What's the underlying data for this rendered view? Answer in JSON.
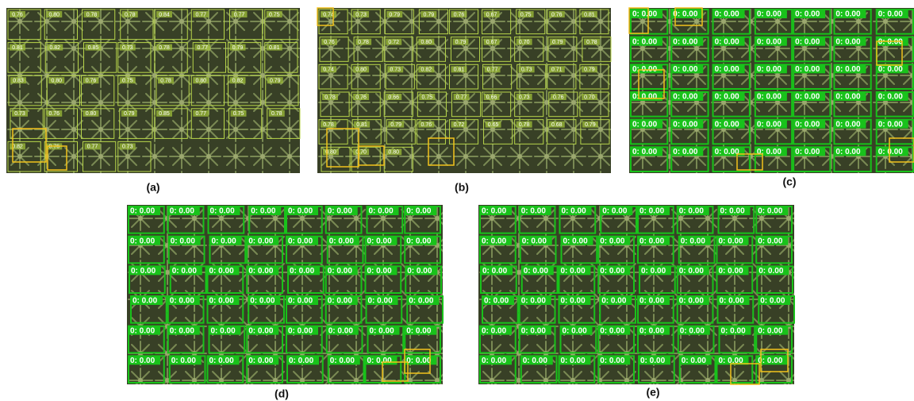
{
  "panels": [
    {
      "caption": "(a)",
      "detections": [
        "0.76",
        "0.80",
        "0.78",
        "0.78",
        "0.84",
        "0.77",
        "0.77",
        "0.75",
        "0.81",
        "0.82",
        "0.85",
        "0.73",
        "0.78",
        "0.77",
        "0.79",
        "0.81",
        "0.83",
        "0.80",
        "0.76",
        "0.75",
        "0.78",
        "0.80",
        "0.82",
        "0.79",
        "0.73",
        "0.76",
        "0.80",
        "0.79",
        "0.85",
        "0.77",
        "0.75",
        "0.78",
        "0.82",
        "0.76",
        "0.77",
        "0.73"
      ]
    },
    {
      "caption": "(b)",
      "detections": [
        "0.74",
        "0.73",
        "0.79",
        "0.79",
        "0.76",
        "0.67",
        "0.75",
        "0.76",
        "0.81",
        "0.76",
        "0.78",
        "0.72",
        "0.80",
        "0.79",
        "0.67",
        "0.70",
        "0.79",
        "0.78",
        "0.74",
        "0.80",
        "0.73",
        "0.82",
        "0.81",
        "0.77",
        "0.73",
        "0.71",
        "0.79",
        "0.78",
        "0.76",
        "0.66",
        "0.75",
        "0.77",
        "0.66",
        "0.73",
        "0.76",
        "0.70",
        "0.78",
        "0.81",
        "0.79",
        "0.76",
        "0.72",
        "0.65",
        "0.78",
        "0.68",
        "0.79",
        "0.80",
        "0.70",
        "0.80"
      ]
    },
    {
      "caption": "(c)",
      "detections": [
        "0: 0.00",
        "0: 0.00",
        "0: 0.00",
        "0: 0.00",
        "0: 0.00",
        "0: 0.00",
        "0: 0.00",
        "0: 0.00",
        "0: 0.00",
        "0: 0.00",
        "0: 0.00",
        "0: 0.00",
        "0: 0.00",
        "0: 0.00",
        "0: 0.00",
        "0: 0.00",
        "0: 0.00",
        "0: 0.00",
        "0: 0.00",
        "0: 0.00",
        "0: 0.00",
        "0: 0.00",
        "0: 0.00",
        "0: 0.00",
        "0: 0.00",
        "0: 0.00",
        "0: 0.00",
        "0: 0.00",
        "0: 0.00",
        "0: 0.00",
        "0: 0.00",
        "0: 0.00",
        "0: 0.00",
        "0: 0.00",
        "0: 0.00",
        "0: 0.00",
        "0: 0.00",
        "0: 0.00",
        "0: 0.00",
        "0: 0.00",
        "0: 0.00",
        "0: 0.00"
      ]
    },
    {
      "caption": "(d)",
      "detections": [
        "0: 0.00",
        "0: 0.00",
        "0: 0.00",
        "0: 0.00",
        "0: 0.00",
        "0: 0.00",
        "0: 0.00",
        "0: 0.00",
        "0: 0.00",
        "0: 0.00",
        "0: 0.00",
        "0: 0.00",
        "0: 0.00",
        "0: 0.00",
        "0: 0.00",
        "0: 0.00",
        "0: 0.00",
        "0: 0.00",
        "0: 0.00",
        "0: 0.00",
        "0: 0.00",
        "0: 0.00",
        "0: 0.00",
        "0: 0.00",
        "0: 0.00",
        "0: 0.00",
        "0: 0.00",
        "0: 0.00",
        "0: 0.00",
        "0: 0.00",
        "0: 0.00",
        "0: 0.00",
        "0: 0.00",
        "0: 0.00",
        "0: 0.00",
        "0: 0.00",
        "0: 0.00",
        "0: 0.00",
        "0: 0.00",
        "0: 0.00",
        "0: 0.00",
        "0: 0.00",
        "0: 0.00",
        "0: 0.00",
        "0: 0.00",
        "0: 0.00",
        "0: 0.00",
        "0: 0.00"
      ]
    },
    {
      "caption": "(e)",
      "detections": [
        "0: 0.00",
        "0: 0.00",
        "0: 0.00",
        "0: 0.00",
        "0: 0.00",
        "0: 0.00",
        "0: 0.00",
        "0: 0.00",
        "0: 0.00",
        "0: 0.00",
        "0: 0.00",
        "0: 0.00",
        "0: 0.00",
        "0: 0.00",
        "0: 0.00",
        "0: 0.00",
        "0: 0.00",
        "0: 0.00",
        "0: 0.00",
        "0: 0.00",
        "0: 0.00",
        "0: 0.00",
        "0: 0.00",
        "0: 0.00",
        "0: 0.00",
        "0: 0.00",
        "0: 0.00",
        "0: 0.00",
        "0: 0.00",
        "0: 0.00",
        "0: 0.00",
        "0: 0.00",
        "0: 0.00",
        "0: 0.00",
        "0: 0.00",
        "0: 0.00",
        "0: 0.00",
        "0: 0.00",
        "0: 0.00",
        "0: 0.00",
        "0: 0.00",
        "0: 0.00",
        "0: 0.00",
        "0: 0.00",
        "0: 0.00",
        "0: 0.00",
        "0: 0.00",
        "0: 0.00"
      ]
    }
  ]
}
